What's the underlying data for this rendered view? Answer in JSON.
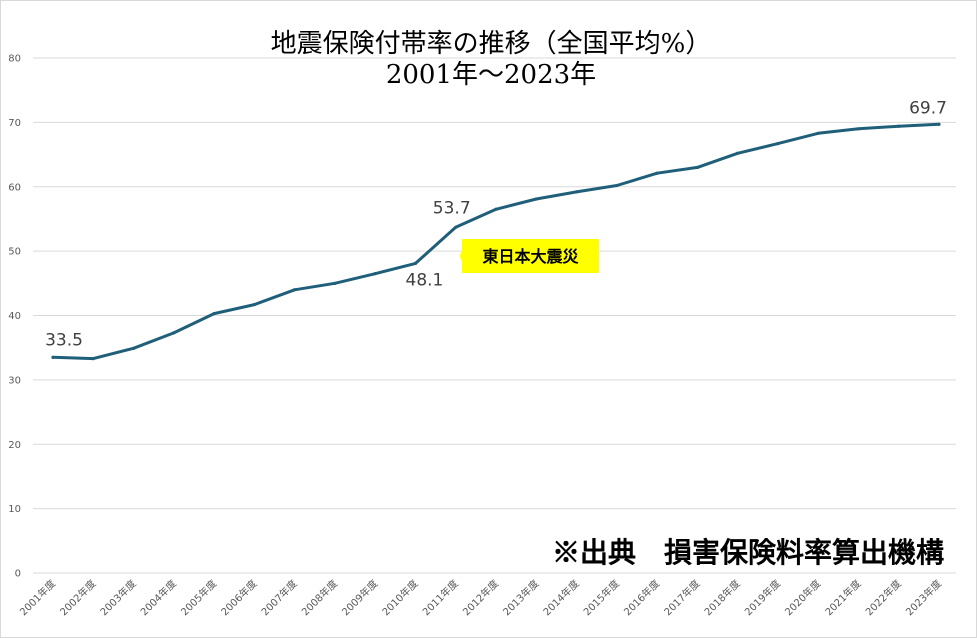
{
  "chart_data": {
    "type": "line",
    "title": "地震保険付帯率の推移（全国平均%）",
    "subtitle": "2001年～2023年",
    "xlabel": "",
    "ylabel": "",
    "ylim": [
      0,
      80
    ],
    "yticks": [
      0,
      10,
      20,
      30,
      40,
      50,
      60,
      70,
      80
    ],
    "grid": true,
    "legend": "none",
    "categories": [
      "2001年度",
      "2002年度",
      "2003年度",
      "2004年度",
      "2005年度",
      "2006年度",
      "2007年度",
      "2008年度",
      "2009年度",
      "2010年度",
      "2011年度",
      "2012年度",
      "2013年度",
      "2014年度",
      "2015年度",
      "2016年度",
      "2017年度",
      "2018年度",
      "2019年度",
      "2020年度",
      "2021年度",
      "2022年度",
      "2023年度"
    ],
    "series": [
      {
        "values": [
          33.5,
          33.3,
          34.9,
          37.3,
          40.3,
          41.7,
          44.0,
          45.0,
          46.5,
          48.1,
          53.7,
          56.5,
          58.1,
          59.2,
          60.2,
          62.1,
          63.0,
          65.2,
          66.7,
          68.3,
          69.0,
          69.4,
          69.7
        ],
        "color": "#1f5f7a"
      }
    ],
    "data_labels": [
      {
        "index": 0,
        "text": "33.5"
      },
      {
        "index": 9,
        "text": "48.1"
      },
      {
        "index": 10,
        "text": "53.7"
      },
      {
        "index": 22,
        "text": "69.7"
      }
    ],
    "annotation": {
      "index": 10,
      "text": "東日本大震災",
      "background": "#ffff00"
    },
    "source": "※出典　損害保険料率算出機構"
  }
}
